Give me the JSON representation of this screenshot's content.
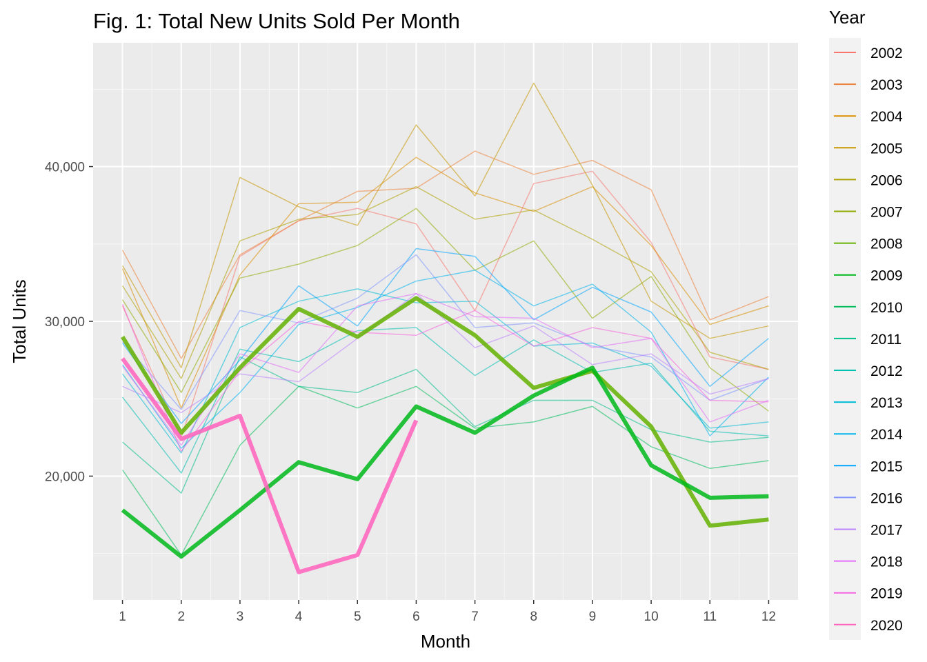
{
  "chart_data": {
    "type": "line",
    "title": "Fig. 1: Total New Units Sold Per Month",
    "xlabel": "Month",
    "ylabel": "Total Units",
    "categories": [
      1,
      2,
      3,
      4,
      5,
      6,
      7,
      8,
      9,
      10,
      11,
      12
    ],
    "category_labels": [
      "1",
      "2",
      "3",
      "4",
      "5",
      "6",
      "7",
      "8",
      "9",
      "10",
      "11",
      "12"
    ],
    "xlim": [
      0.5,
      12.5
    ],
    "ylim": [
      12000,
      48000
    ],
    "yticks": [
      20000,
      30000,
      40000
    ],
    "ytick_labels": [
      "20,000",
      "30,000",
      "40,000"
    ],
    "grid": true,
    "background": "#ebebeb",
    "legend": {
      "title": "Year",
      "position": "right"
    },
    "series": [
      {
        "name": "2002",
        "color": "#f8766d",
        "highlight": false,
        "values": [
          31000,
          22500,
          34200,
          36500,
          37300,
          36300,
          30700,
          38900,
          39700,
          35100,
          27700,
          26900
        ]
      },
      {
        "name": "2003",
        "color": "#ec8239",
        "highlight": false,
        "values": [
          34600,
          27600,
          34300,
          36500,
          38400,
          38600,
          41000,
          39500,
          40400,
          38500,
          30100,
          31600
        ]
      },
      {
        "name": "2004",
        "color": "#db8e00",
        "highlight": false,
        "values": [
          33400,
          24400,
          33000,
          37600,
          37700,
          40600,
          38300,
          37100,
          38700,
          34900,
          29800,
          31000
        ]
      },
      {
        "name": "2005",
        "color": "#c79800",
        "highlight": false,
        "values": [
          33600,
          27000,
          39300,
          37400,
          36200,
          42700,
          38100,
          45400,
          38800,
          31300,
          28900,
          29700
        ]
      },
      {
        "name": "2006",
        "color": "#aea200",
        "highlight": false,
        "values": [
          32300,
          26300,
          35200,
          36600,
          36900,
          38700,
          36600,
          37200,
          35300,
          33200,
          28000,
          26900
        ]
      },
      {
        "name": "2007",
        "color": "#8fab00",
        "highlight": false,
        "values": [
          31400,
          25400,
          32800,
          33700,
          34900,
          37300,
          33300,
          35200,
          30200,
          32900,
          27000,
          24200
        ]
      },
      {
        "name": "2008",
        "color": "#64b200",
        "highlight": true,
        "values": [
          29000,
          22800,
          27000,
          30800,
          29000,
          31500,
          29100,
          25700,
          26800,
          23200,
          16800,
          17200
        ]
      },
      {
        "name": "2009",
        "color": "#00b81b",
        "highlight": true,
        "values": [
          17800,
          14800,
          17800,
          20900,
          19800,
          24500,
          22800,
          25200,
          27000,
          20700,
          18600,
          18700
        ]
      },
      {
        "name": "2010",
        "color": "#00bd5c",
        "highlight": false,
        "values": [
          20400,
          14900,
          22000,
          25800,
          24400,
          25800,
          23100,
          23500,
          24500,
          21900,
          20500,
          21000
        ]
      },
      {
        "name": "2011",
        "color": "#00c08b",
        "highlight": false,
        "values": [
          22200,
          18900,
          27700,
          25800,
          25400,
          26900,
          23200,
          24900,
          24900,
          23000,
          22200,
          22500
        ]
      },
      {
        "name": "2012",
        "color": "#00c0b2",
        "highlight": false,
        "values": [
          25100,
          20200,
          28200,
          27400,
          29400,
          29600,
          26500,
          28800,
          26700,
          27300,
          22900,
          22600
        ]
      },
      {
        "name": "2013",
        "color": "#00bcd6",
        "highlight": false,
        "values": [
          26600,
          21500,
          29600,
          31300,
          32100,
          31200,
          31300,
          28400,
          28600,
          27100,
          23100,
          23500
        ]
      },
      {
        "name": "2014",
        "color": "#00b5ee",
        "highlight": false,
        "values": [
          27200,
          21800,
          25400,
          29800,
          30900,
          32600,
          33300,
          31000,
          32400,
          29300,
          22600,
          26400
        ]
      },
      {
        "name": "2015",
        "color": "#00a6ff",
        "highlight": false,
        "values": [
          28600,
          23400,
          27500,
          32300,
          29700,
          34700,
          34200,
          30100,
          32200,
          30600,
          25800,
          28900
        ]
      },
      {
        "name": "2016",
        "color": "#7f96ff",
        "highlight": false,
        "values": [
          28700,
          24300,
          30700,
          29900,
          31500,
          34300,
          29600,
          29900,
          28400,
          27700,
          24900,
          26300
        ]
      },
      {
        "name": "2017",
        "color": "#bc81ff",
        "highlight": false,
        "values": [
          25800,
          24100,
          26600,
          26100,
          28900,
          31800,
          28300,
          29700,
          27200,
          27900,
          25300,
          26300
        ]
      },
      {
        "name": "2018",
        "color": "#e26ef7",
        "highlight": false,
        "values": [
          27100,
          22000,
          27900,
          26700,
          31000,
          31800,
          30300,
          30200,
          28300,
          28900,
          23500,
          24900
        ]
      },
      {
        "name": "2019",
        "color": "#f863df",
        "highlight": false,
        "values": [
          31100,
          21600,
          26800,
          30000,
          29300,
          29100,
          30700,
          28400,
          29600,
          28900,
          24900,
          24800
        ]
      },
      {
        "name": "2020",
        "color": "#ff62bc",
        "highlight": true,
        "values": [
          27600,
          22400,
          23900,
          13800,
          14900,
          23600,
          null,
          null,
          null,
          null,
          null,
          null
        ]
      }
    ]
  }
}
